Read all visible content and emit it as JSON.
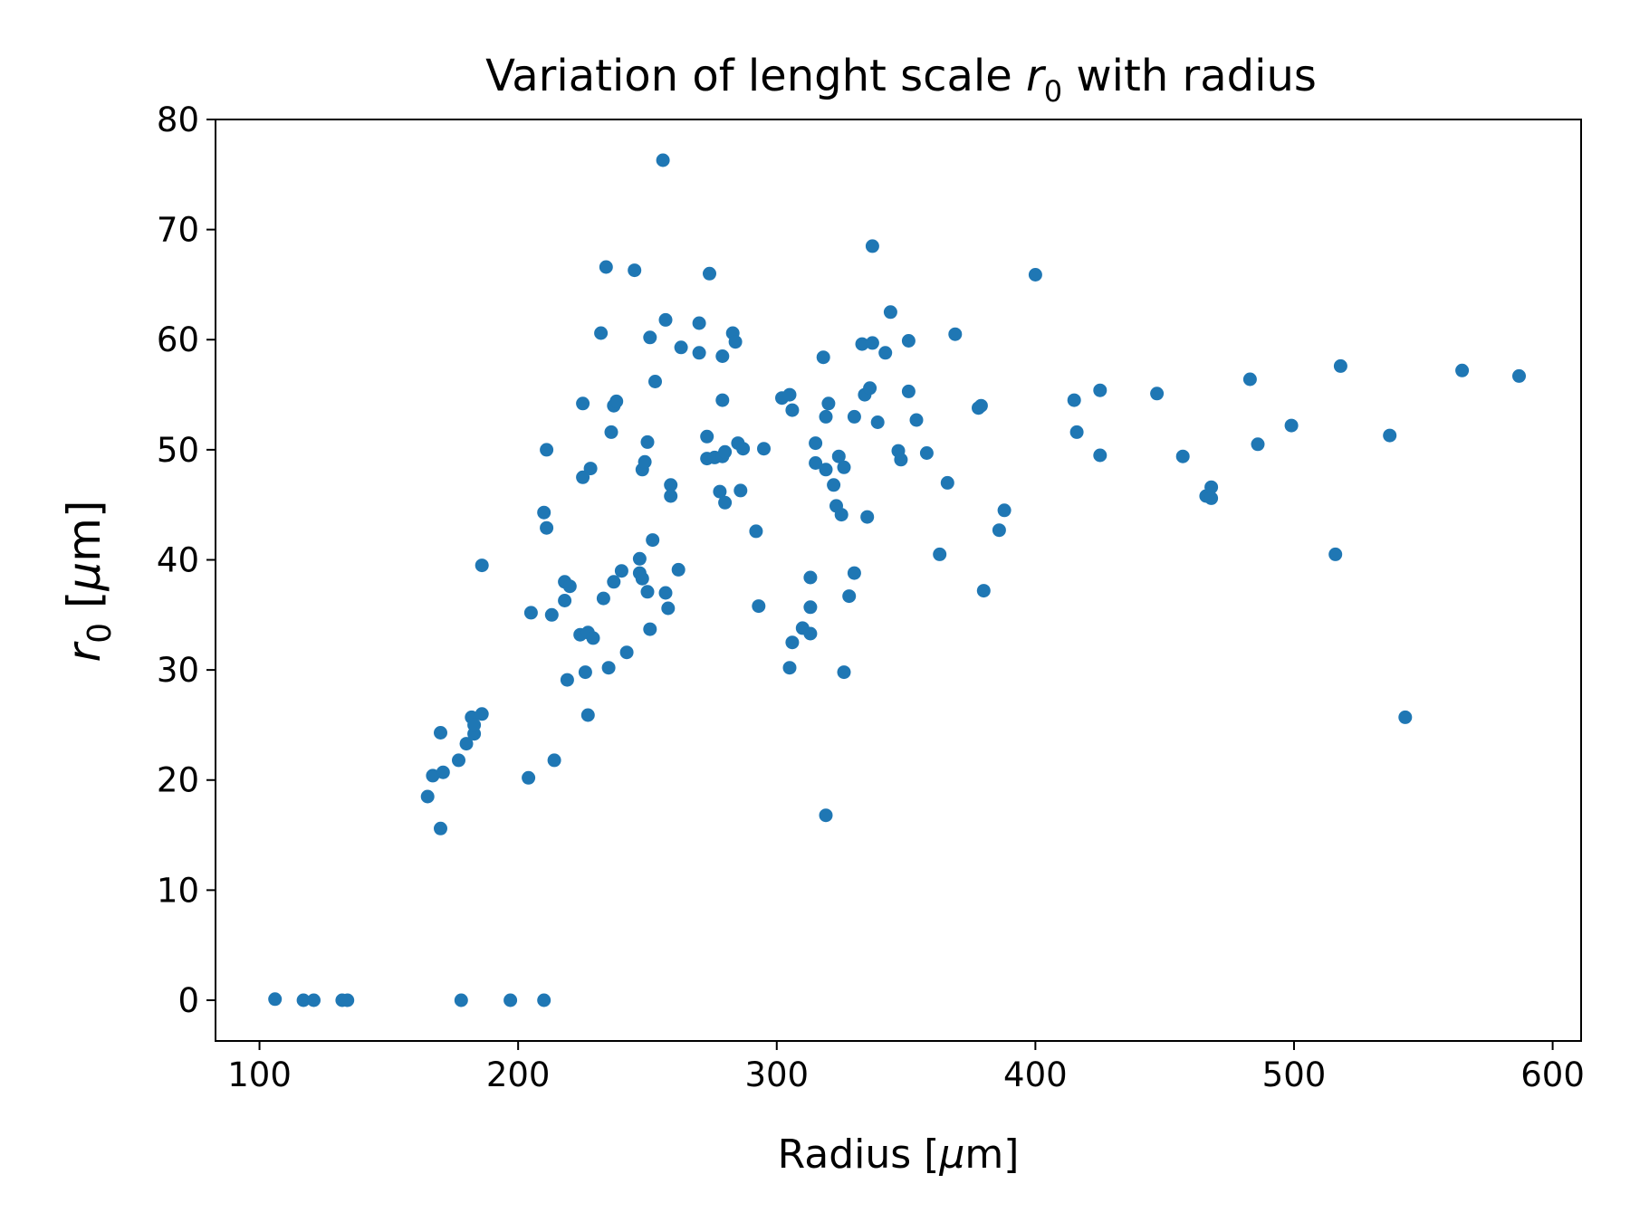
{
  "chart_data": {
    "type": "scatter",
    "title": {
      "main": "Variation of lenght scale ",
      "symbol": "r",
      "subscript": "0",
      "rest": " with radius"
    },
    "xlabel": {
      "prefix": "Radius [",
      "mu": "μ",
      "suffix": "m]"
    },
    "ylabel": {
      "symbol": "r",
      "subscript": "0",
      "prefix": " [",
      "mu": "μ",
      "suffix": "m]"
    },
    "xlim": [
      83,
      611
    ],
    "ylim": [
      -3.7,
      80
    ],
    "xticks": [
      100,
      200,
      300,
      400,
      500,
      600
    ],
    "yticks": [
      0,
      10,
      20,
      30,
      40,
      50,
      60,
      70,
      80
    ],
    "grid": false,
    "legend": "none",
    "marker_color": "#1f77b4",
    "points": [
      [
        106,
        0.1
      ],
      [
        117,
        0
      ],
      [
        121,
        0
      ],
      [
        132,
        0
      ],
      [
        134,
        0
      ],
      [
        178,
        0
      ],
      [
        197,
        0
      ],
      [
        210,
        0
      ],
      [
        165,
        18.5
      ],
      [
        167,
        20.4
      ],
      [
        170,
        15.6
      ],
      [
        170,
        24.3
      ],
      [
        171,
        20.7
      ],
      [
        177,
        21.8
      ],
      [
        180,
        23.3
      ],
      [
        182,
        25.7
      ],
      [
        183,
        24.2
      ],
      [
        183,
        25.0
      ],
      [
        186,
        26.0
      ],
      [
        186,
        39.5
      ],
      [
        204,
        20.2
      ],
      [
        205,
        35.2
      ],
      [
        210,
        44.3
      ],
      [
        211,
        42.9
      ],
      [
        211,
        50.0
      ],
      [
        213,
        35.0
      ],
      [
        214,
        21.8
      ],
      [
        218,
        38.0
      ],
      [
        218,
        36.3
      ],
      [
        219,
        29.1
      ],
      [
        220,
        37.6
      ],
      [
        224,
        33.2
      ],
      [
        225,
        54.2
      ],
      [
        225,
        47.5
      ],
      [
        226,
        29.8
      ],
      [
        227,
        33.4
      ],
      [
        227,
        25.9
      ],
      [
        228,
        48.3
      ],
      [
        229,
        32.9
      ],
      [
        232,
        60.6
      ],
      [
        233,
        36.5
      ],
      [
        234,
        66.6
      ],
      [
        235,
        30.2
      ],
      [
        236,
        51.6
      ],
      [
        237,
        54.0
      ],
      [
        237,
        38.0
      ],
      [
        238,
        54.4
      ],
      [
        240,
        39.0
      ],
      [
        242,
        31.6
      ],
      [
        245,
        66.3
      ],
      [
        247,
        40.1
      ],
      [
        247,
        38.8
      ],
      [
        248,
        38.3
      ],
      [
        248,
        48.2
      ],
      [
        249,
        48.9
      ],
      [
        250,
        37.1
      ],
      [
        250,
        50.7
      ],
      [
        251,
        60.2
      ],
      [
        251,
        33.7
      ],
      [
        252,
        41.8
      ],
      [
        253,
        56.2
      ],
      [
        256,
        76.3
      ],
      [
        257,
        61.8
      ],
      [
        257,
        37.0
      ],
      [
        258,
        35.6
      ],
      [
        259,
        46.8
      ],
      [
        259,
        45.8
      ],
      [
        262,
        39.1
      ],
      [
        263,
        59.3
      ],
      [
        270,
        61.5
      ],
      [
        270,
        58.8
      ],
      [
        273,
        49.2
      ],
      [
        273,
        51.2
      ],
      [
        274,
        66.0
      ],
      [
        276,
        49.3
      ],
      [
        278,
        46.2
      ],
      [
        279,
        49.4
      ],
      [
        279,
        54.5
      ],
      [
        279,
        58.5
      ],
      [
        280,
        49.8
      ],
      [
        280,
        45.2
      ],
      [
        283,
        60.6
      ],
      [
        284,
        59.8
      ],
      [
        285,
        50.6
      ],
      [
        286,
        46.3
      ],
      [
        287,
        50.1
      ],
      [
        292,
        42.6
      ],
      [
        293,
        35.8
      ],
      [
        295,
        50.1
      ],
      [
        302,
        54.7
      ],
      [
        305,
        55.0
      ],
      [
        305,
        30.2
      ],
      [
        306,
        32.5
      ],
      [
        306,
        53.6
      ],
      [
        310,
        33.8
      ],
      [
        313,
        35.7
      ],
      [
        313,
        38.4
      ],
      [
        313,
        33.3
      ],
      [
        315,
        48.8
      ],
      [
        315,
        50.6
      ],
      [
        318,
        58.4
      ],
      [
        319,
        53.0
      ],
      [
        319,
        16.8
      ],
      [
        319,
        48.2
      ],
      [
        320,
        54.2
      ],
      [
        322,
        46.8
      ],
      [
        323,
        44.9
      ],
      [
        324,
        49.4
      ],
      [
        325,
        44.1
      ],
      [
        326,
        48.4
      ],
      [
        326,
        29.8
      ],
      [
        328,
        36.7
      ],
      [
        330,
        53.0
      ],
      [
        330,
        38.8
      ],
      [
        333,
        59.6
      ],
      [
        334,
        55.0
      ],
      [
        335,
        43.9
      ],
      [
        336,
        55.6
      ],
      [
        337,
        68.5
      ],
      [
        337,
        59.7
      ],
      [
        339,
        52.5
      ],
      [
        342,
        58.8
      ],
      [
        344,
        62.5
      ],
      [
        347,
        49.9
      ],
      [
        348,
        49.1
      ],
      [
        351,
        55.3
      ],
      [
        351,
        59.9
      ],
      [
        354,
        52.7
      ],
      [
        358,
        49.7
      ],
      [
        363,
        40.5
      ],
      [
        366,
        47.0
      ],
      [
        369,
        60.5
      ],
      [
        378,
        53.8
      ],
      [
        379,
        54.0
      ],
      [
        380,
        37.2
      ],
      [
        386,
        42.7
      ],
      [
        388,
        44.5
      ],
      [
        400,
        65.9
      ],
      [
        415,
        54.5
      ],
      [
        416,
        51.6
      ],
      [
        425,
        55.4
      ],
      [
        425,
        49.5
      ],
      [
        447,
        55.1
      ],
      [
        457,
        49.4
      ],
      [
        466,
        45.8
      ],
      [
        468,
        46.6
      ],
      [
        468,
        45.6
      ],
      [
        483,
        56.4
      ],
      [
        486,
        50.5
      ],
      [
        499,
        52.2
      ],
      [
        516,
        40.5
      ],
      [
        518,
        57.6
      ],
      [
        537,
        51.3
      ],
      [
        543,
        25.7
      ],
      [
        565,
        57.2
      ],
      [
        587,
        56.7
      ]
    ]
  }
}
